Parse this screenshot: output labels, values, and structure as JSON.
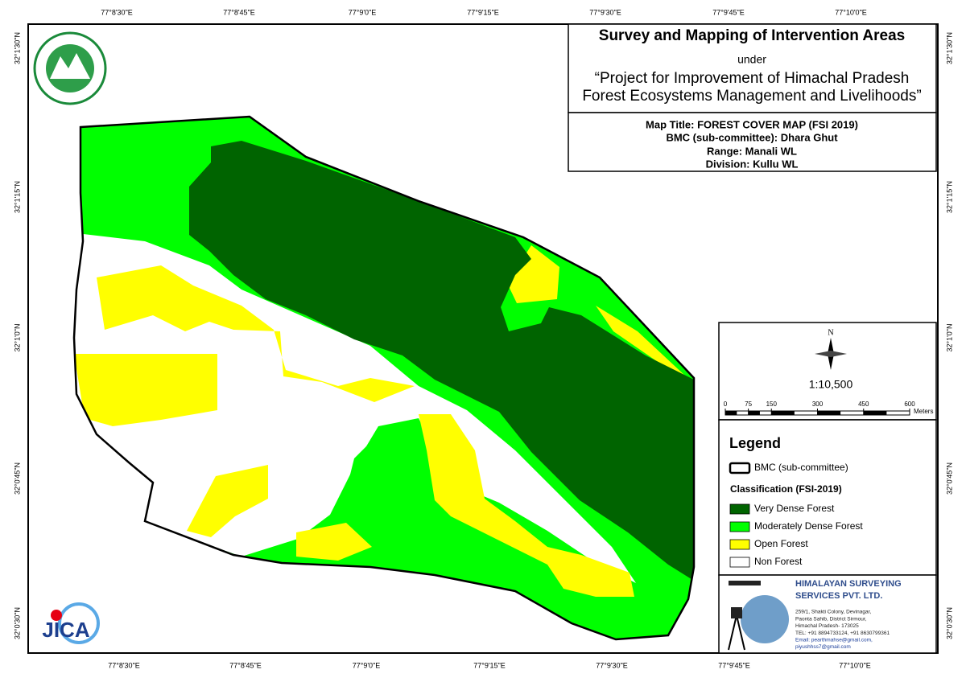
{
  "header": {
    "title": "Survey and Mapping of Intervention Areas",
    "under": "under",
    "project_line1": "“Project for Improvement of Himachal Pradesh",
    "project_line2": "Forest Ecosystems Management and Livelihoods”"
  },
  "map_info": {
    "map_title": "Map Title: FOREST COVER MAP (FSI 2019)",
    "bmc": "BMC (sub-committee): Dhara Ghut",
    "range": "Range: Manali WL",
    "division": "Division: Kullu WL"
  },
  "north": "N",
  "scale": "1:10,500",
  "scale_bar": {
    "ticks": [
      0,
      75,
      150,
      300,
      450,
      600
    ],
    "unit": "Meters"
  },
  "legend": {
    "title": "Legend",
    "boundary": "BMC (sub-committee)",
    "classification_title": "Classification (FSI-2019)",
    "classes": [
      {
        "label": "Very Dense Forest",
        "color": "#006400"
      },
      {
        "label": "Moderately Dense Forest",
        "color": "#00ff00"
      },
      {
        "label": "Open Forest",
        "color": "#ffff00"
      },
      {
        "label": "Non Forest",
        "color": "#ffffff"
      }
    ]
  },
  "grid": {
    "top": [
      "77°8'30\"E",
      "77°8'45\"E",
      "77°9'0\"E",
      "77°9'15\"E",
      "77°9'30\"E",
      "77°9'45\"E",
      "77°10'0\"E"
    ],
    "bottom": [
      "77°8'30\"E",
      "77°8'45\"E",
      "77°9'0\"E",
      "77°9'15\"E",
      "77°9'30\"E",
      "77°9'45\"E",
      "77°10'0\"E"
    ],
    "left": [
      "32°1'30\"N",
      "32°1'15\"N",
      "32°1'0\"N",
      "32°0'45\"N",
      "32°0'30\"N"
    ],
    "right": [
      "32°1'30\"N",
      "32°1'15\"N",
      "32°1'0\"N",
      "32°0'45\"N",
      "32°0'30\"N"
    ]
  },
  "jica": "JICA",
  "company": {
    "name_line1": "HIMALAYAN SURVEYING",
    "name_line2": "SERVICES PVT. LTD.",
    "address": [
      "259/1, Shakti Colony, Devinagar,",
      "Paonta Sahib, District Sirmour,",
      "Himachal Pradesh- 173025",
      "TEL: +91 8894733124, +91 8630799361",
      "Email: pearthmahse@gmail.com,",
      "piyushhss7@gmail.com"
    ]
  }
}
